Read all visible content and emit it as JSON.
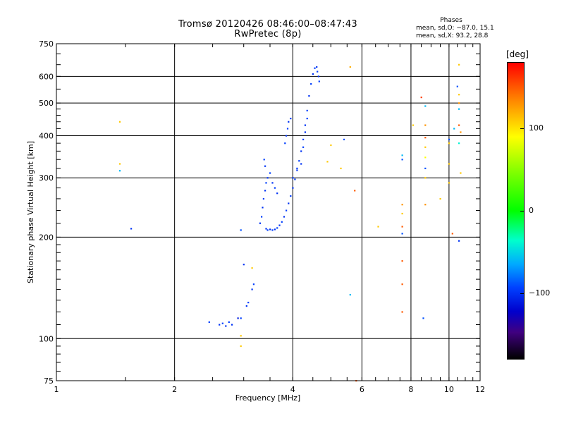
{
  "chart_data": {
    "type": "scatter",
    "title": "Tromsø 20120426 08:46:00–08:47:43",
    "subtitle": "RwPretec (8p)",
    "xlabel": "Frequency [MHz]",
    "ylabel": "Stationary phase Virtual Height [km]",
    "x_scale": "log",
    "y_scale": "log",
    "xlim": [
      1,
      12
    ],
    "ylim": [
      75,
      750
    ],
    "x_ticks": [
      "1",
      "2",
      "4",
      "6",
      "8",
      "10",
      "12"
    ],
    "x_tick_values": [
      1,
      2,
      4,
      6,
      8,
      10,
      12
    ],
    "y_ticks": [
      "750",
      "600",
      "500",
      "400",
      "300",
      "200",
      "100",
      "75"
    ],
    "y_tick_values": [
      750,
      600,
      500,
      400,
      300,
      200,
      100,
      75
    ],
    "grid": true,
    "phases_legend": {
      "title": "Phases",
      "line1": "mean, sd,O: −87.0, 15.1",
      "line2": "mean, sd,X:  93.2, 28.8"
    },
    "colorbar": {
      "label": "[deg]",
      "ticks": [
        "100",
        "0",
        "−100"
      ],
      "tick_values": [
        100,
        0,
        -100
      ],
      "range": [
        -180,
        180
      ]
    },
    "series": [
      {
        "points": [
          [
            3.42,
            212,
            -100
          ],
          [
            3.45,
            210,
            -95
          ],
          [
            3.5,
            211,
            -100
          ],
          [
            3.55,
            210,
            -95
          ],
          [
            3.6,
            211,
            -100
          ],
          [
            3.65,
            213,
            -95
          ],
          [
            3.7,
            217,
            -100
          ],
          [
            3.75,
            222,
            -95
          ],
          [
            3.8,
            230,
            -100
          ],
          [
            3.85,
            240,
            -95
          ],
          [
            3.9,
            252,
            -100
          ],
          [
            3.95,
            265,
            -95
          ],
          [
            4.0,
            280,
            -100
          ],
          [
            4.05,
            297,
            -95
          ],
          [
            4.1,
            316,
            -100
          ],
          [
            4.15,
            337,
            -95
          ],
          [
            4.2,
            360,
            -100
          ],
          [
            4.25,
            390,
            -95
          ],
          [
            4.3,
            430,
            -100
          ],
          [
            4.35,
            475,
            -95
          ],
          [
            4.4,
            525,
            -100
          ],
          [
            4.45,
            570,
            -95
          ],
          [
            4.5,
            610,
            -100
          ],
          [
            4.55,
            635,
            -95
          ],
          [
            4.6,
            640,
            -100
          ],
          [
            4.62,
            620,
            -95
          ],
          [
            4.65,
            600,
            -100
          ],
          [
            4.67,
            580,
            -95
          ],
          [
            3.3,
            220,
            -100
          ],
          [
            3.33,
            230,
            -95
          ],
          [
            3.35,
            245,
            -100
          ],
          [
            3.37,
            260,
            -95
          ],
          [
            3.4,
            275,
            -100
          ],
          [
            3.42,
            290,
            -95
          ],
          [
            3.45,
            300,
            -100
          ],
          [
            3.5,
            310,
            -95
          ],
          [
            3.55,
            290,
            -100
          ],
          [
            3.6,
            280,
            -95
          ],
          [
            3.65,
            270,
            -100
          ],
          [
            3.38,
            340,
            -95
          ],
          [
            3.4,
            325,
            -100
          ],
          [
            3.82,
            380,
            -95
          ],
          [
            3.85,
            400,
            -100
          ],
          [
            3.88,
            420,
            -95
          ],
          [
            3.9,
            440,
            -100
          ],
          [
            3.95,
            450,
            -95
          ],
          [
            4.0,
            300,
            -100
          ],
          [
            4.1,
            320,
            -95
          ],
          [
            4.2,
            330,
            -100
          ],
          [
            4.25,
            370,
            -95
          ],
          [
            4.3,
            410,
            -100
          ],
          [
            4.35,
            450,
            -95
          ],
          [
            2.6,
            110,
            -100
          ],
          [
            2.65,
            111,
            -95
          ],
          [
            2.7,
            109,
            -100
          ],
          [
            2.75,
            112,
            -95
          ],
          [
            2.8,
            110,
            -100
          ],
          [
            2.45,
            112,
            -95
          ],
          [
            2.9,
            115,
            -110
          ],
          [
            2.95,
            115,
            -95
          ],
          [
            3.05,
            125,
            -100
          ],
          [
            3.08,
            128,
            -95
          ],
          [
            3.15,
            140,
            -100
          ],
          [
            3.18,
            145,
            -95
          ],
          [
            3.0,
            166,
            -100
          ],
          [
            2.95,
            210,
            -90
          ],
          [
            1.55,
            212,
            -100
          ],
          [
            1.45,
            315,
            -60
          ],
          [
            1.45,
            330,
            110
          ],
          [
            1.45,
            440,
            110
          ],
          [
            2.95,
            95,
            110
          ],
          [
            2.95,
            102,
            110
          ],
          [
            3.15,
            162,
            110
          ],
          [
            4.9,
            335,
            110
          ],
          [
            5.0,
            375,
            110
          ],
          [
            5.3,
            320,
            110
          ],
          [
            5.4,
            390,
            -90
          ],
          [
            5.6,
            135,
            -60
          ],
          [
            5.6,
            640,
            120
          ],
          [
            5.75,
            275,
            150
          ],
          [
            5.8,
            75,
            150
          ],
          [
            6.6,
            215,
            110
          ],
          [
            7.6,
            205,
            -90
          ],
          [
            7.6,
            215,
            150
          ],
          [
            7.6,
            235,
            110
          ],
          [
            7.6,
            340,
            -90
          ],
          [
            7.6,
            350,
            -60
          ],
          [
            7.6,
            170,
            150
          ],
          [
            7.6,
            145,
            150
          ],
          [
            7.6,
            120,
            150
          ],
          [
            7.6,
            250,
            130
          ],
          [
            8.1,
            430,
            110
          ],
          [
            8.5,
            520,
            160
          ],
          [
            8.6,
            115,
            -90
          ],
          [
            8.7,
            490,
            -60
          ],
          [
            8.7,
            430,
            130
          ],
          [
            8.7,
            395,
            150
          ],
          [
            8.7,
            370,
            110
          ],
          [
            8.7,
            345,
            90
          ],
          [
            8.7,
            320,
            -90
          ],
          [
            8.7,
            300,
            110
          ],
          [
            8.7,
            250,
            130
          ],
          [
            9.5,
            260,
            110
          ],
          [
            10.0,
            330,
            110
          ],
          [
            10.0,
            380,
            110
          ],
          [
            10.0,
            390,
            -90
          ],
          [
            10.0,
            290,
            110
          ],
          [
            10.2,
            205,
            150
          ],
          [
            10.3,
            420,
            -60
          ],
          [
            10.5,
            560,
            -90
          ],
          [
            10.6,
            530,
            110
          ],
          [
            10.6,
            500,
            130
          ],
          [
            10.6,
            480,
            -60
          ],
          [
            10.6,
            430,
            150
          ],
          [
            10.6,
            380,
            -40
          ],
          [
            10.6,
            195,
            -100
          ],
          [
            10.6,
            650,
            110
          ],
          [
            10.7,
            310,
            110
          ],
          [
            10.7,
            410,
            130
          ]
        ]
      }
    ]
  }
}
